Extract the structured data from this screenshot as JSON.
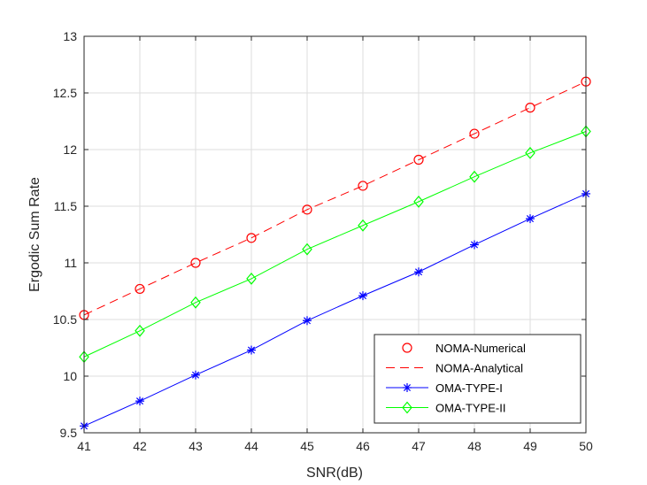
{
  "chart_data": {
    "type": "line",
    "title": "",
    "xlabel": "SNR(dB)",
    "ylabel": "Ergodic Sum Rate",
    "xlim": [
      41,
      50
    ],
    "ylim": [
      9.5,
      13
    ],
    "xticks": [
      41,
      42,
      43,
      44,
      45,
      46,
      47,
      48,
      49,
      50
    ],
    "yticks": [
      9.5,
      10,
      10.5,
      11,
      11.5,
      12,
      12.5,
      13
    ],
    "ytick_labels": [
      "9.5",
      "10",
      "10.5",
      "11",
      "11.5",
      "12",
      "12.5",
      "13"
    ],
    "grid": true,
    "legend_position": "bottom-right",
    "x": [
      41,
      42,
      43,
      44,
      45,
      46,
      47,
      48,
      49,
      50
    ],
    "series": [
      {
        "name": "NOMA-Numerical",
        "color": "#ff0000",
        "marker": "circle",
        "line": "none",
        "values": [
          10.54,
          10.77,
          11.0,
          11.22,
          11.47,
          11.68,
          11.91,
          12.14,
          12.37,
          12.6
        ]
      },
      {
        "name": "NOMA-Analytical",
        "color": "#ff0000",
        "marker": "none",
        "line": "dashed",
        "values": [
          10.54,
          10.77,
          11.0,
          11.22,
          11.47,
          11.68,
          11.91,
          12.14,
          12.37,
          12.6
        ]
      },
      {
        "name": "OMA-TYPE-I",
        "color": "#0000ff",
        "marker": "asterisk",
        "line": "solid",
        "values": [
          9.56,
          9.78,
          10.01,
          10.23,
          10.49,
          10.71,
          10.92,
          11.16,
          11.39,
          11.61
        ]
      },
      {
        "name": "OMA-TYPE-II",
        "color": "#00ff00",
        "marker": "diamond",
        "line": "solid",
        "values": [
          10.17,
          10.4,
          10.65,
          10.86,
          11.12,
          11.33,
          11.54,
          11.76,
          11.97,
          12.16
        ]
      }
    ]
  }
}
